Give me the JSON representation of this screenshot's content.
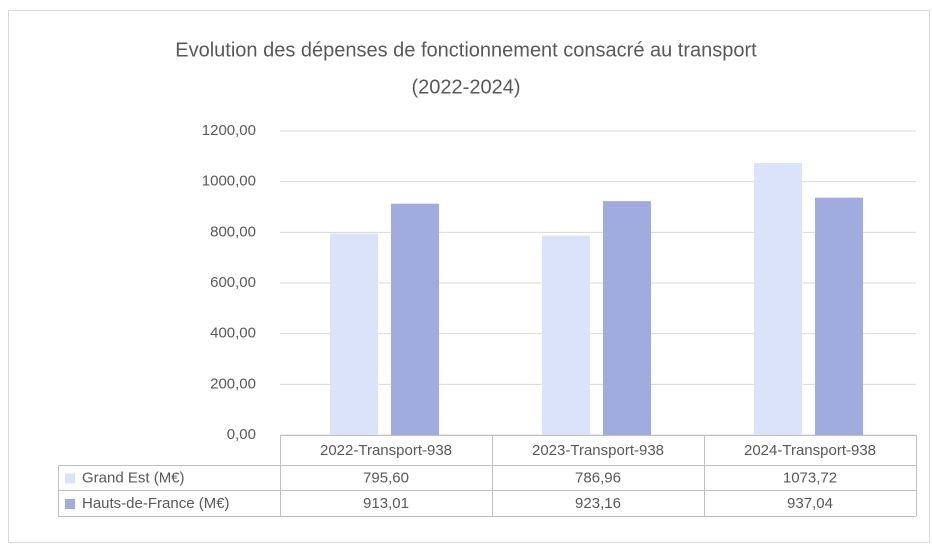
{
  "chart_data": {
    "type": "bar",
    "title": "Evolution des dépenses de fonctionnement consacré au transport",
    "subtitle": "(2022-2024)",
    "categories": [
      "2022-Transport-938",
      "2023-Transport-938",
      "2024-Transport-938"
    ],
    "series": [
      {
        "name": "Grand Est (M€)",
        "color": "#dae3f8",
        "values": [
          795.6,
          786.96,
          1073.72
        ],
        "value_labels": [
          "795,60",
          "786,96",
          "1073,72"
        ]
      },
      {
        "name": "Hauts-de-France (M€)",
        "color": "#a0acdf",
        "values": [
          913.01,
          923.16,
          937.04
        ],
        "value_labels": [
          "913,01",
          "923,16",
          "937,04"
        ]
      }
    ],
    "ylim": [
      0,
      1200
    ],
    "yticks": [
      {
        "value": 0,
        "label": "0,00"
      },
      {
        "value": 200,
        "label": "200,00"
      },
      {
        "value": 400,
        "label": "400,00"
      },
      {
        "value": 600,
        "label": "600,00"
      },
      {
        "value": 800,
        "label": "800,00"
      },
      {
        "value": 1000,
        "label": "1000,00"
      },
      {
        "value": 1200,
        "label": "1200,00"
      }
    ],
    "grid": true
  }
}
